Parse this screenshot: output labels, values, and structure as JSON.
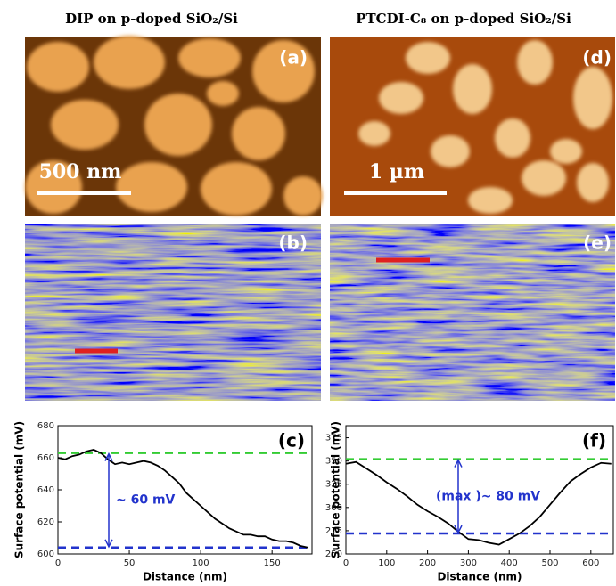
{
  "figure": {
    "column_titles": [
      "DIP on p-doped SiO₂/Si",
      "PTCDI-C₈ on p-doped SiO₂/Si"
    ],
    "panels": [
      {
        "label": "(a)",
        "scale_bar": "500 nm"
      },
      {
        "label": "(d)",
        "scale_bar": "1 µm"
      },
      {
        "label": "(b)"
      },
      {
        "label": "(e)"
      }
    ]
  },
  "chart_data": [
    {
      "type": "line",
      "panel_label": "(c)",
      "annotation": "~ 60 mV",
      "xlabel": "Distance (nm)",
      "ylabel": "Surface potential (mV)",
      "x": [
        0,
        5,
        10,
        15,
        20,
        25,
        30,
        35,
        40,
        45,
        50,
        55,
        60,
        65,
        70,
        75,
        80,
        85,
        90,
        95,
        100,
        105,
        110,
        115,
        120,
        125,
        130,
        135,
        140,
        145,
        150,
        155,
        160,
        165,
        170,
        175
      ],
      "values": [
        660,
        659,
        661,
        662,
        664,
        665,
        663,
        659,
        656,
        657,
        656,
        657,
        658,
        657,
        655,
        652,
        648,
        644,
        638,
        634,
        630,
        626,
        622,
        619,
        616,
        614,
        612,
        612,
        611,
        611,
        609,
        608,
        608,
        607,
        605,
        604
      ],
      "color": "#000000",
      "reference_lines": [
        {
          "value": 663,
          "color": "#33cc33"
        },
        {
          "value": 604,
          "color": "#2233cc"
        }
      ],
      "xlim": [
        0,
        178
      ],
      "xticks": [
        0,
        50,
        100,
        150
      ],
      "ylim": [
        600,
        680
      ],
      "yticks": [
        600,
        620,
        640,
        660,
        680
      ]
    },
    {
      "type": "line",
      "panel_label": "(f)",
      "annotation": "(max )~ 80 mV",
      "xlabel": "Distance (nm)",
      "ylabel": "Surface potential (mV)",
      "x": [
        0,
        25,
        50,
        75,
        100,
        125,
        150,
        175,
        200,
        225,
        250,
        275,
        300,
        325,
        350,
        375,
        400,
        425,
        450,
        475,
        500,
        525,
        550,
        575,
        600,
        625,
        650
      ],
      "values": [
        347,
        349,
        342,
        335,
        327,
        320,
        312,
        303,
        296,
        290,
        283,
        274,
        266,
        265,
        262,
        260,
        266,
        272,
        280,
        290,
        303,
        316,
        328,
        336,
        343,
        348,
        347
      ],
      "color": "#000000",
      "reference_lines": [
        {
          "value": 352,
          "color": "#33cc33"
        },
        {
          "value": 272,
          "color": "#2233cc"
        }
      ],
      "xlim": [
        0,
        655
      ],
      "xticks": [
        0,
        100,
        200,
        300,
        400,
        500,
        600
      ],
      "ylim": [
        250,
        388
      ],
      "yticks": [
        250,
        275,
        300,
        325,
        350,
        375
      ]
    }
  ]
}
